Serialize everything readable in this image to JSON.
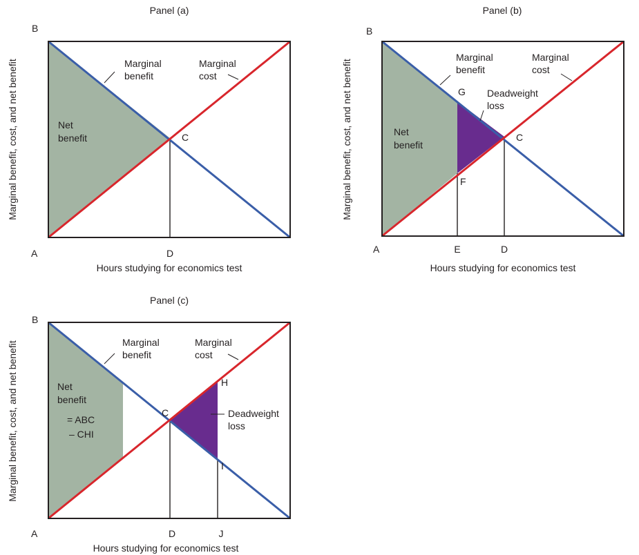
{
  "panels": [
    {
      "id": "a",
      "title": "Panel (a)",
      "y_axis_label": "Marginal benefit, cost, and net benefit",
      "x_axis_label": "Hours studying for economics test",
      "curve_labels": {
        "marginal_benefit": [
          "Marginal",
          "benefit"
        ],
        "marginal_cost": [
          "Marginal",
          "cost"
        ]
      },
      "area_labels": {
        "net_benefit": [
          "Net",
          "benefit"
        ]
      },
      "points": {
        "A": "A",
        "B": "B",
        "C": "C",
        "D": "D"
      }
    },
    {
      "id": "b",
      "title": "Panel (b)",
      "y_axis_label": "Marginal benefit, cost, and net benefit",
      "x_axis_label": "Hours studying for economics test",
      "curve_labels": {
        "marginal_benefit": [
          "Marginal",
          "benefit"
        ],
        "marginal_cost": [
          "Marginal",
          "cost"
        ]
      },
      "area_labels": {
        "net_benefit": [
          "Net",
          "benefit"
        ],
        "deadweight_loss": [
          "Deadweight",
          "loss"
        ]
      },
      "points": {
        "A": "A",
        "B": "B",
        "C": "C",
        "D": "D",
        "E": "E",
        "F": "F",
        "G": "G"
      }
    },
    {
      "id": "c",
      "title": "Panel (c)",
      "y_axis_label": "Marginal benefit, cost, and net benefit",
      "x_axis_label": "Hours studying for economics test",
      "curve_labels": {
        "marginal_benefit": [
          "Marginal",
          "benefit"
        ],
        "marginal_cost": [
          "Marginal",
          "cost"
        ]
      },
      "area_labels": {
        "net_benefit": [
          "Net",
          "benefit",
          "= ABC",
          "– CHI"
        ],
        "deadweight_loss": [
          "Deadweight",
          "loss"
        ]
      },
      "points": {
        "A": "A",
        "B": "B",
        "C": "C",
        "D": "D",
        "H": "H",
        "I": "I",
        "J": "J"
      }
    }
  ],
  "colors": {
    "marginal_benefit": "#3a5ea8",
    "marginal_cost": "#d8262c",
    "net_benefit_fill": "#a3b4a3",
    "deadweight_loss_fill": "#682c8e"
  }
}
